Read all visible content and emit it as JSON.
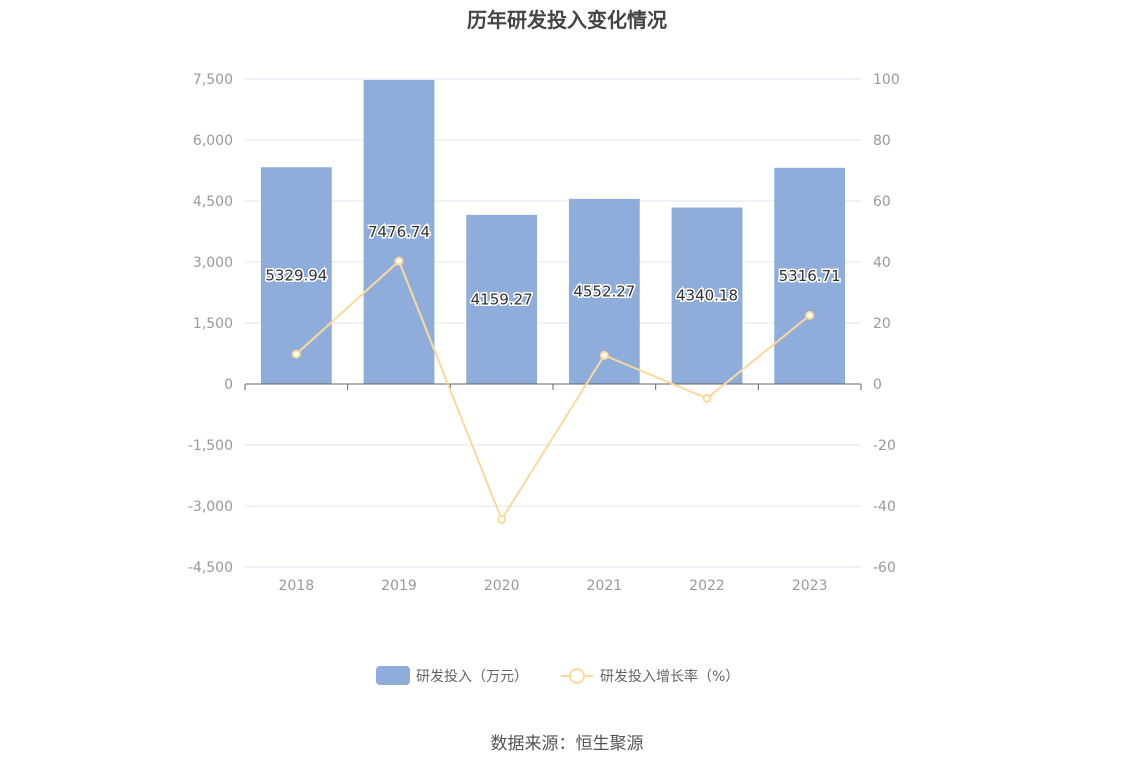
{
  "source_text": "数据来源：恒生聚源",
  "colors": {
    "bar": "#8eaddb",
    "line": "#fcd99b",
    "grid": "#e3e6f0",
    "axis": "#666666"
  },
  "chart_data": {
    "type": "bar",
    "title": "历年研发投入变化情况",
    "categories": [
      "2018",
      "2019",
      "2020",
      "2021",
      "2022",
      "2023"
    ],
    "series": [
      {
        "name": "研发投入（万元）",
        "type": "bar",
        "axis": "left",
        "values": [
          5329.94,
          7476.74,
          4159.27,
          4552.27,
          4340.18,
          5316.71
        ],
        "labels": [
          "5329.94",
          "7476.74",
          "4159.27",
          "4552.27",
          "4340.18",
          "5316.71"
        ]
      },
      {
        "name": "研发投入增长率（%）",
        "type": "line",
        "axis": "right",
        "values": [
          9.8,
          40.3,
          -44.4,
          9.4,
          -4.7,
          22.5
        ]
      }
    ],
    "left_axis": {
      "min": -4500,
      "max": 7500,
      "ticks": [
        7500,
        6000,
        4500,
        3000,
        1500,
        0,
        -1500,
        -3000,
        -4500
      ],
      "tick_labels": [
        "7,500",
        "6,000",
        "4,500",
        "3,000",
        "1,500",
        "0",
        "-1,500",
        "-3,000",
        "-4,500"
      ]
    },
    "right_axis": {
      "min": -60,
      "max": 100,
      "ticks": [
        100,
        80,
        60,
        40,
        20,
        0,
        -20,
        -40,
        -60
      ],
      "tick_labels": [
        "100",
        "80",
        "60",
        "40",
        "20",
        "0",
        "-20",
        "-40",
        "-60"
      ]
    },
    "grid": true,
    "legend_position": "bottom"
  }
}
